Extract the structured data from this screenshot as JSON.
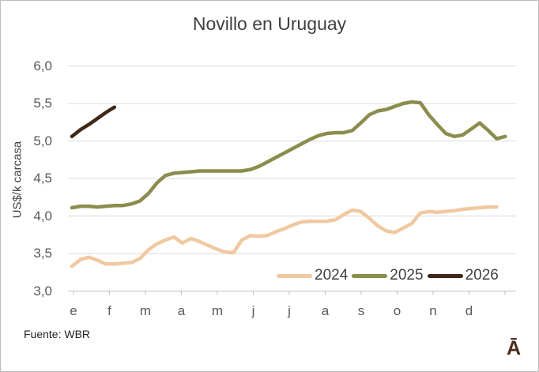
{
  "window": {
    "source_note": "Fuente: WBR",
    "logo_glyph": "Ā"
  },
  "chart_data": {
    "type": "line",
    "title": "Novillo en Uruguay",
    "ylabel": "US$/k carcasa",
    "grid": true,
    "legend_position": "inside-bottom-right",
    "x_axis": {
      "unit": "weeks, labeled by month",
      "month_labels": [
        "e",
        "f",
        "m",
        "a",
        "m",
        "j",
        "j",
        "a",
        "s",
        "o",
        "n",
        "d"
      ]
    },
    "y_axis": {
      "min": 3.0,
      "max": 6.0,
      "step": 0.5,
      "tick_labels_top_to_bottom": [
        "6,0",
        "5,5",
        "5,0",
        "4,5",
        "4,0",
        "3,5",
        "3,0"
      ]
    },
    "colors": {
      "grid": "#d9d9d9",
      "axis": "#bfbfbf",
      "series_2024": "#f0c9a1",
      "series_2025": "#8c8c4e",
      "series_2026": "#3f2817"
    },
    "series": [
      {
        "name": "2024",
        "color": "#f0c9a1",
        "values": [
          3.33,
          3.42,
          3.45,
          3.41,
          3.36,
          3.36,
          3.37,
          3.38,
          3.43,
          3.55,
          3.63,
          3.68,
          3.72,
          3.64,
          3.7,
          3.66,
          3.61,
          3.56,
          3.52,
          3.51,
          3.68,
          3.74,
          3.73,
          3.74,
          3.79,
          3.83,
          3.88,
          3.92,
          3.93,
          3.93,
          3.93,
          3.95,
          4.02,
          4.08,
          4.06,
          3.97,
          3.87,
          3.8,
          3.78,
          3.84,
          3.9,
          4.04,
          4.06,
          4.05,
          4.06,
          4.07,
          4.09,
          4.1,
          4.11,
          4.12,
          4.12
        ]
      },
      {
        "name": "2025",
        "color": "#8c8c4e",
        "values": [
          4.11,
          4.13,
          4.13,
          4.12,
          4.13,
          4.14,
          4.14,
          4.16,
          4.2,
          4.3,
          4.44,
          4.54,
          4.57,
          4.58,
          4.59,
          4.6,
          4.6,
          4.6,
          4.6,
          4.6,
          4.6,
          4.62,
          4.66,
          4.72,
          4.78,
          4.84,
          4.9,
          4.96,
          5.02,
          5.07,
          5.1,
          5.11,
          5.11,
          5.14,
          5.24,
          5.35,
          5.4,
          5.42,
          5.46,
          5.5,
          5.52,
          5.51,
          5.35,
          5.22,
          5.1,
          5.06,
          5.08,
          5.16,
          5.24,
          5.14,
          5.03,
          5.06
        ]
      },
      {
        "name": "2026",
        "color": "#3f2817",
        "values": [
          5.06,
          5.15,
          5.22,
          5.3,
          5.38,
          5.45
        ]
      }
    ]
  }
}
